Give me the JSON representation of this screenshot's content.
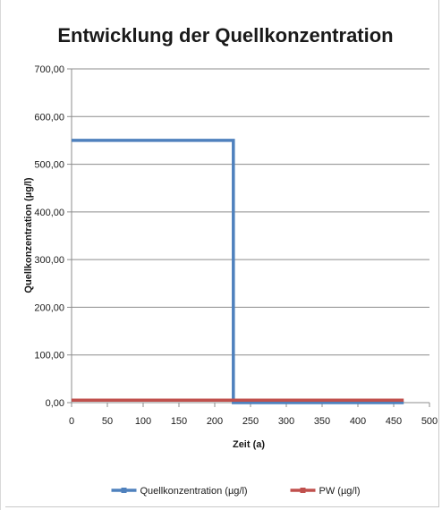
{
  "chart_data": {
    "type": "line",
    "title": "Entwicklung der Quellkonzentration",
    "xlabel": "Zeit (a)",
    "ylabel": "Quellkonzentration (µg/l)",
    "xlim": [
      0,
      500
    ],
    "ylim": [
      0,
      700
    ],
    "x_ticks": [
      0,
      50,
      100,
      150,
      200,
      250,
      300,
      350,
      400,
      450,
      500
    ],
    "y_ticks": [
      0,
      100,
      200,
      300,
      400,
      500,
      600,
      700
    ],
    "y_tick_labels": [
      "0,00",
      "100,00",
      "200,00",
      "300,00",
      "400,00",
      "500,00",
      "600,00",
      "700,00"
    ],
    "grid": "horizontal",
    "legend_position": "bottom",
    "series": [
      {
        "name": "Quellkonzentration (µg/l)",
        "color": "#4f81bd",
        "points": [
          [
            0,
            550
          ],
          [
            226,
            550
          ],
          [
            226,
            0
          ],
          [
            464,
            0
          ]
        ]
      },
      {
        "name": "PW (µg/l)",
        "color": "#c0504d",
        "points": [
          [
            0,
            5
          ],
          [
            464,
            5
          ]
        ]
      }
    ]
  }
}
